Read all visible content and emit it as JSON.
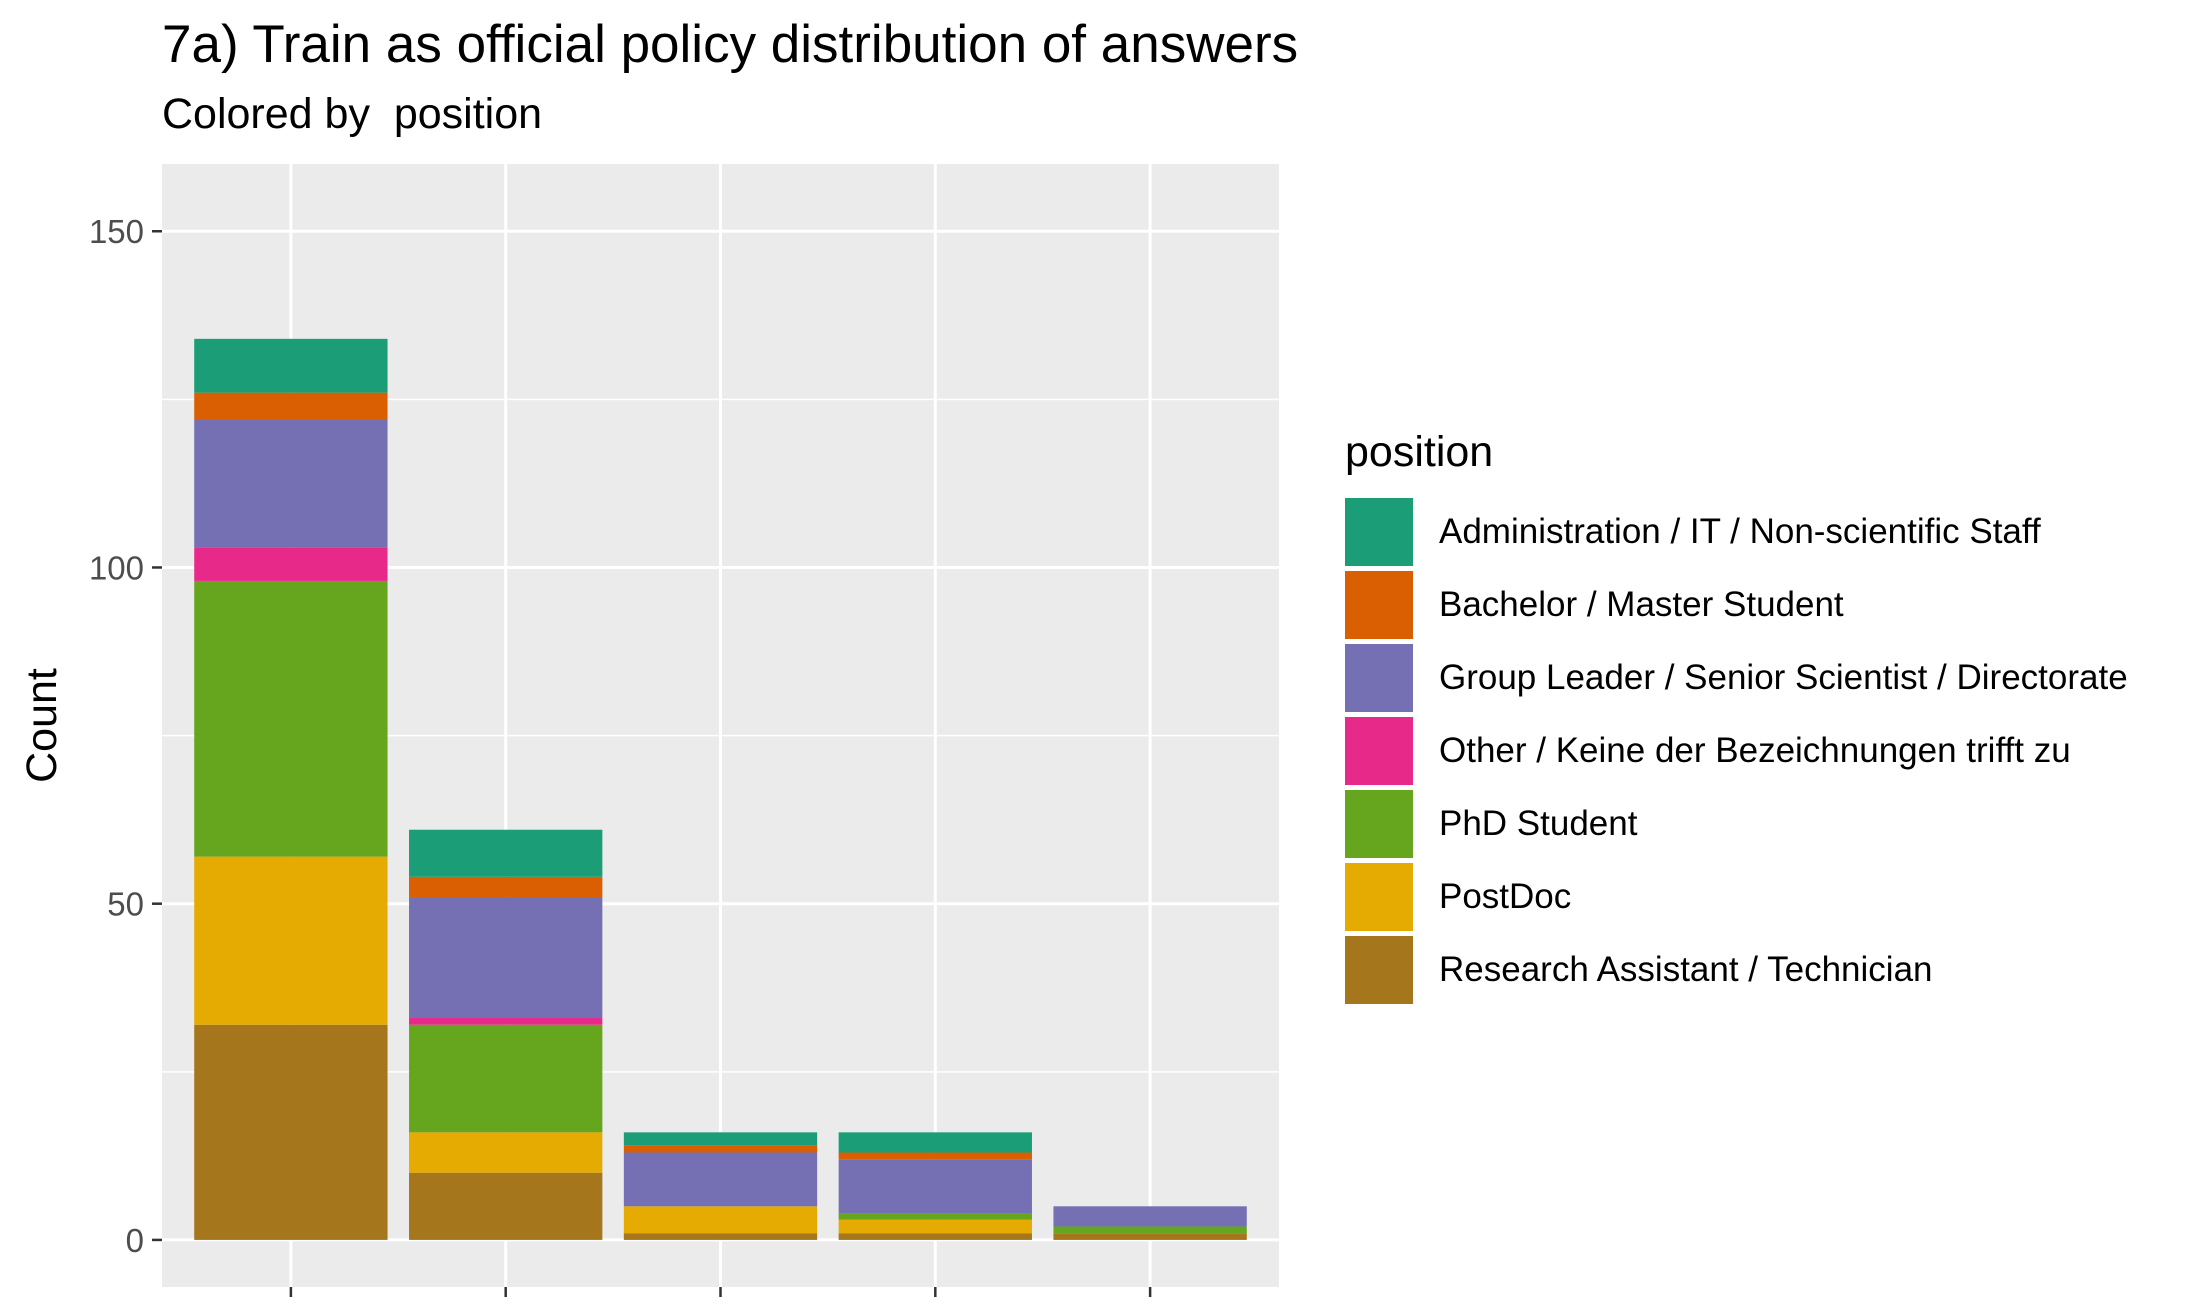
{
  "chart_data": {
    "type": "bar",
    "stacked": true,
    "title": "7a) Train as official policy distribution of answers",
    "subtitle": "Colored by  position",
    "xlabel": "",
    "ylabel": "Count",
    "ylim": [
      -7,
      160
    ],
    "yticks": [
      0,
      50,
      100,
      150
    ],
    "grid": true,
    "legend_title": "position",
    "legend_position": "right",
    "categories": [
      "",
      "",
      "",
      "",
      ""
    ],
    "series": [
      {
        "name": "Administration / IT / Non-scientific Staff",
        "color": "#1B9E77",
        "values": [
          8,
          7,
          2,
          3,
          0
        ]
      },
      {
        "name": "Bachelor / Master Student",
        "color": "#D95F02",
        "values": [
          4,
          3,
          1,
          1,
          0
        ]
      },
      {
        "name": "Group Leader / Senior Scientist / Directorate",
        "color": "#7570B3",
        "values": [
          19,
          18,
          8,
          8,
          3
        ]
      },
      {
        "name": "Other / Keine der Bezeichnungen trifft zu",
        "color": "#E7298A",
        "values": [
          5,
          1,
          0,
          0,
          0
        ]
      },
      {
        "name": "PhD Student",
        "color": "#66A61E",
        "values": [
          41,
          16,
          0,
          1,
          1
        ]
      },
      {
        "name": "PostDoc",
        "color": "#E6AB02",
        "values": [
          25,
          6,
          4,
          2,
          0
        ]
      },
      {
        "name": "Research Assistant / Technician",
        "color": "#A6761D",
        "values": [
          32,
          10,
          1,
          1,
          1
        ]
      }
    ]
  }
}
